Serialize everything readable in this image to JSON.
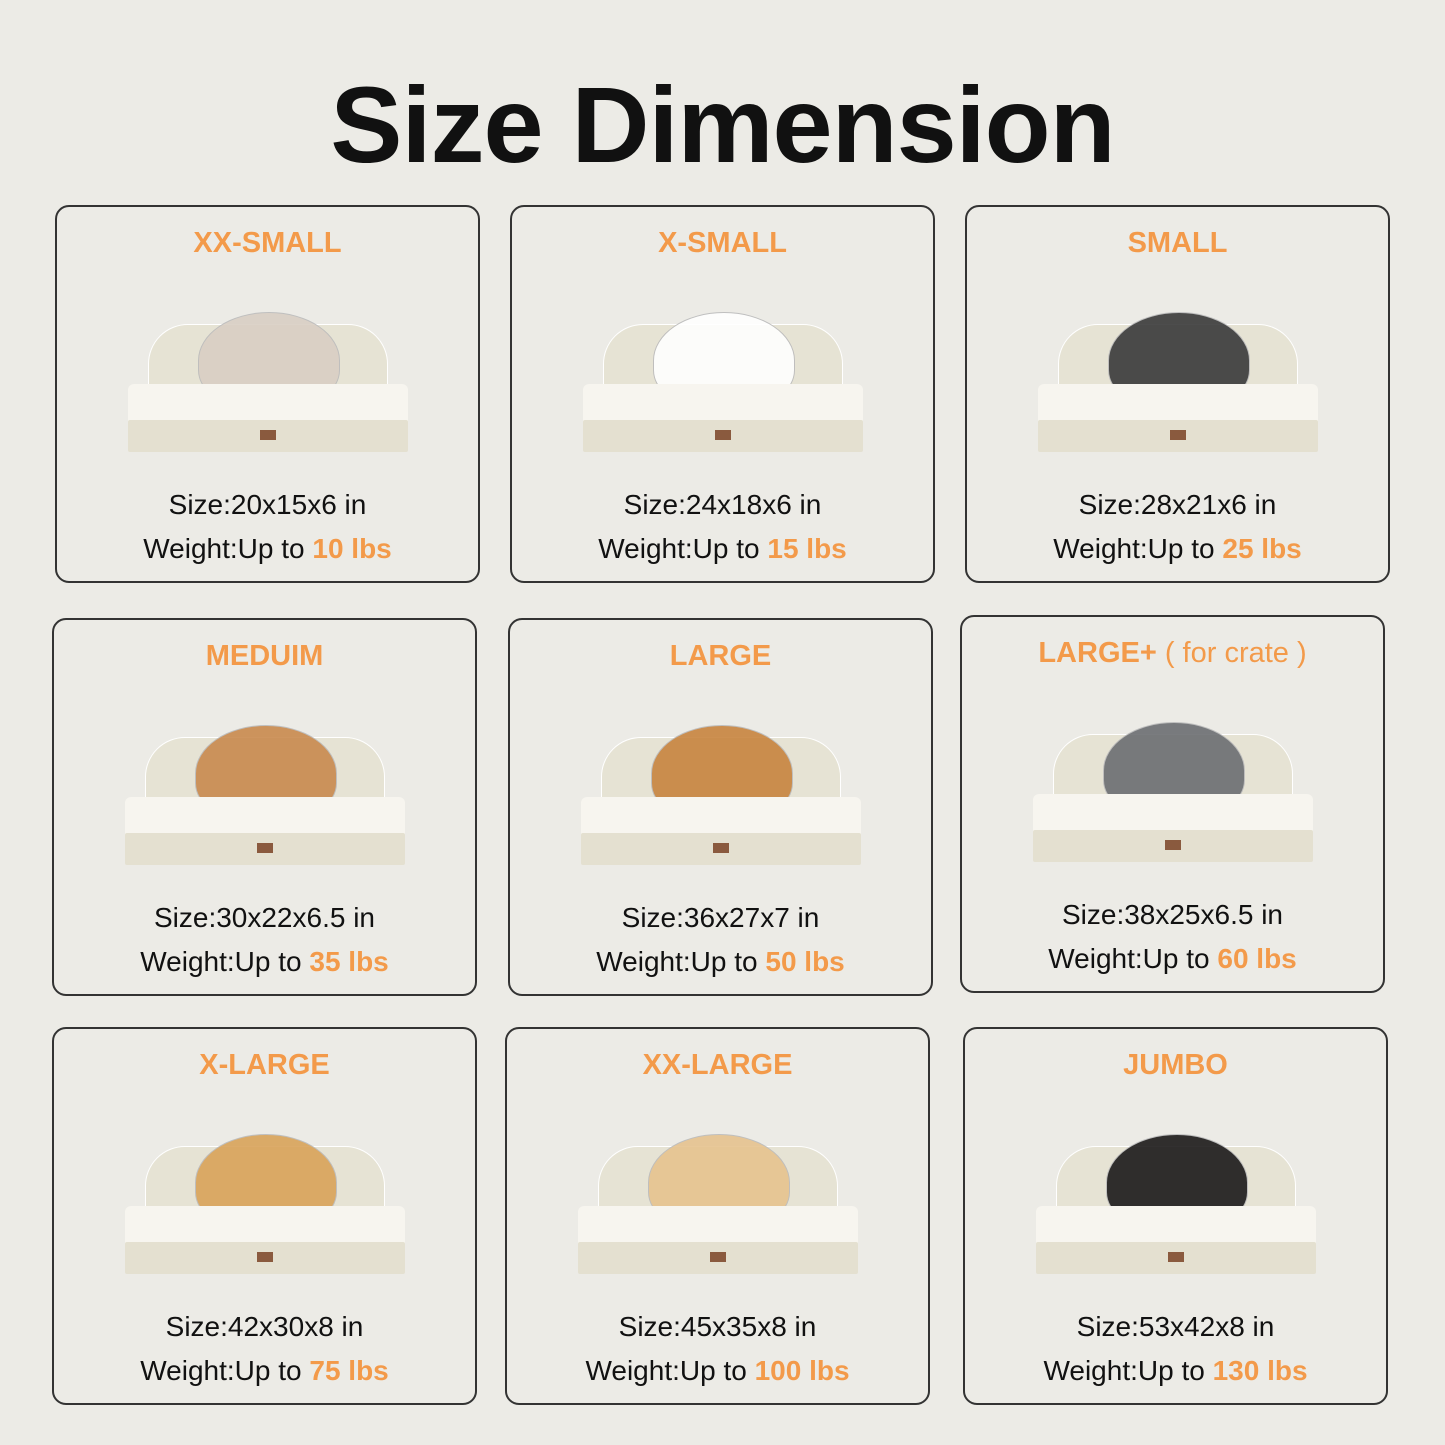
{
  "title": "Size Dimension",
  "accent_color": "#f39a4a",
  "size_label": "Size",
  "weight_label": "Weight",
  "up_to": "Up to",
  "cards": [
    {
      "name": "XX-SMALL",
      "note": "",
      "size": "20x15x6 in",
      "weight": "10 lbs",
      "pet": "cat",
      "pet_color": "#d9cfc4"
    },
    {
      "name": "X-SMALL",
      "note": "",
      "size": "24x18x6 in",
      "weight": "15 lbs",
      "pet": "dog",
      "pet_color": "#ffffff"
    },
    {
      "name": "SMALL",
      "note": "",
      "size": "28x21x6 in",
      "weight": "25 lbs",
      "pet": "dog",
      "pet_color": "#3a3a3a"
    },
    {
      "name": "MEDUIM",
      "note": "",
      "size": "30x22x6.5 in",
      "weight": "35 lbs",
      "pet": "dog",
      "pet_color": "#c98a4e"
    },
    {
      "name": "LARGE",
      "note": "",
      "size": "36x27x7 in",
      "weight": "50 lbs",
      "pet": "dog",
      "pet_color": "#c8843f"
    },
    {
      "name": "LARGE+",
      "note": "( for crate )",
      "size": "38x25x6.5 in",
      "weight": "60 lbs",
      "pet": "dog",
      "pet_color": "#6c6e72"
    },
    {
      "name": "X-LARGE",
      "note": "",
      "size": "42x30x8 in",
      "weight": "75 lbs",
      "pet": "dog",
      "pet_color": "#d9a35a"
    },
    {
      "name": "XX-LARGE",
      "note": "",
      "size": "45x35x8 in",
      "weight": "100 lbs",
      "pet": "dog",
      "pet_color": "#e6c38f"
    },
    {
      "name": "JUMBO",
      "note": "",
      "size": "53x42x8 in",
      "weight": "130 lbs",
      "pet": "dog",
      "pet_color": "#1c1a1a"
    }
  ]
}
